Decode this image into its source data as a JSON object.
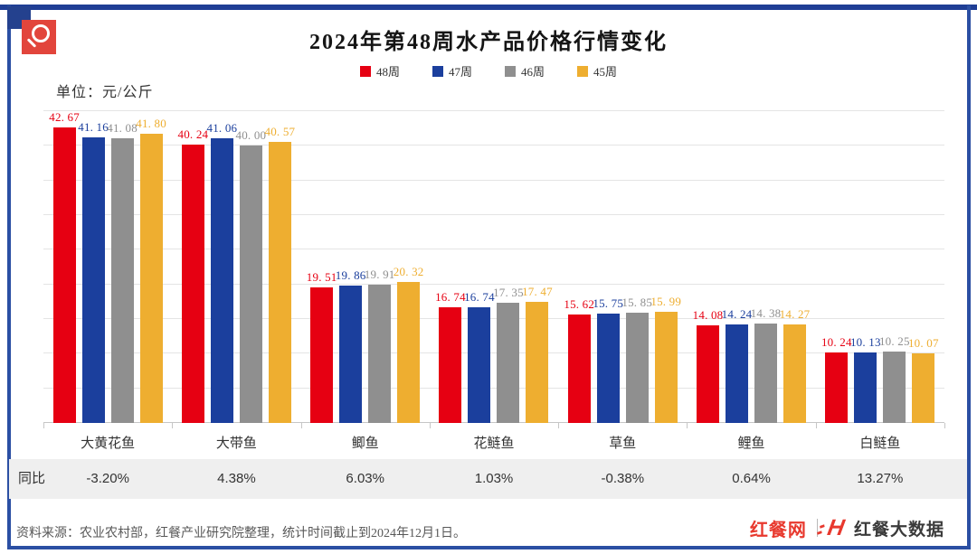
{
  "header": {
    "title": "2024年第48周水产品价格行情变化",
    "unit_label": "单位：元/公斤"
  },
  "icons": {
    "corner_logo": "magnifier-icon",
    "brand_logo": "hongcan-h-icon"
  },
  "colors": {
    "frame_border": "#2b4fa3",
    "top_bar": "#1f3e95",
    "corner_square": "#24418e",
    "icon_square": "#e2453c",
    "yoy_band_bg": "#efefef",
    "brand_red": "#e8392e"
  },
  "chart_data": {
    "type": "bar",
    "title": "2024年第48周水产品价格行情变化",
    "unit": "元/公斤",
    "categories": [
      "大黄花鱼",
      "大带鱼",
      "鲫鱼",
      "花鲢鱼",
      "草鱼",
      "鲤鱼",
      "白鲢鱼"
    ],
    "series": [
      {
        "name": "48周",
        "color": "#e60012",
        "values": [
          42.67,
          40.24,
          19.51,
          16.74,
          15.62,
          14.08,
          10.24
        ]
      },
      {
        "name": "47周",
        "color": "#1b3f9d",
        "values": [
          41.16,
          41.06,
          19.86,
          16.74,
          15.75,
          14.24,
          10.13
        ]
      },
      {
        "name": "46周",
        "color": "#8f8f8f",
        "values": [
          41.08,
          40.0,
          19.91,
          17.35,
          15.85,
          14.38,
          10.25
        ]
      },
      {
        "name": "45周",
        "color": "#eeae30",
        "values": [
          41.8,
          40.57,
          20.32,
          17.47,
          15.99,
          14.27,
          10.07
        ]
      }
    ],
    "ylim": [
      0,
      45
    ],
    "grid_step": 5,
    "grid": "horizontal-only",
    "y_axis_labels": "none",
    "legend_position": "top-center",
    "value_labels": "above-bars-colored-as-series"
  },
  "yoy_row": {
    "label": "同比",
    "values": [
      "-3.20%",
      "4.38%",
      "6.03%",
      "1.03%",
      "-0.38%",
      "0.64%",
      "13.27%"
    ]
  },
  "footer": {
    "source_note": "资料来源：农业农村部，红餐产业研究院整理，统计时间截止到2024年12月1日。",
    "brand_left": "红餐网",
    "brand_right": "红餐大数据"
  }
}
